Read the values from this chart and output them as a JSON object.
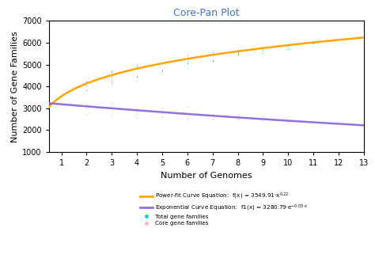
{
  "title": "Core-Pan Plot",
  "title_color": "#4472C4",
  "xlabel": "Number of Genomes",
  "ylabel": "Number of Gene Families",
  "xlim": [
    0.5,
    13
  ],
  "ylim": [
    1000,
    7000
  ],
  "xticks": [
    1,
    2,
    3,
    4,
    5,
    6,
    7,
    8,
    9,
    10,
    11,
    12,
    13
  ],
  "yticks": [
    1000,
    2000,
    3000,
    4000,
    5000,
    6000,
    7000
  ],
  "pan_color": "#FFA500",
  "core_color": "#9370DB",
  "pan_scatter_color": "#00CED1",
  "core_scatter_color": "#FFB6C1",
  "pan_a": 3549.91,
  "pan_b": 0.22,
  "core_a": 3280.79,
  "core_b": -0.03,
  "pan_points": {
    "x": [
      1,
      2,
      2,
      2,
      3,
      3,
      3,
      3,
      3,
      4,
      4,
      4,
      4,
      4,
      5,
      5,
      5,
      5,
      6,
      6,
      6,
      6,
      6,
      7,
      7,
      7,
      7,
      8,
      8,
      8,
      8,
      9,
      9,
      9,
      10,
      10,
      10,
      11,
      11
    ],
    "y": [
      3570,
      3820,
      4050,
      4220,
      4450,
      4650,
      4700,
      4230,
      4150,
      4480,
      4850,
      5000,
      4900,
      4430,
      4780,
      5100,
      5080,
      4700,
      5050,
      5300,
      5420,
      5150,
      5050,
      5200,
      5450,
      5550,
      5170,
      5450,
      5680,
      5560,
      5480,
      5580,
      5800,
      5680,
      5700,
      5910,
      5870,
      5950,
      6050
    ]
  },
  "core_points": {
    "x": [
      1,
      2,
      2,
      2,
      3,
      3,
      3,
      3,
      4,
      4,
      4,
      4,
      5,
      5,
      5,
      5,
      6,
      6,
      6,
      6,
      7,
      7,
      7,
      7,
      8,
      8,
      8,
      9,
      9,
      9,
      10,
      10,
      10,
      11,
      11
    ],
    "y": [
      3170,
      2750,
      3020,
      3220,
      2700,
      2850,
      3130,
      3250,
      2600,
      2750,
      2850,
      3000,
      2600,
      2680,
      2780,
      3020,
      2480,
      2560,
      2730,
      3050,
      2480,
      2520,
      2650,
      2730,
      2470,
      2530,
      2700,
      2400,
      2520,
      2620,
      2380,
      2420,
      2580,
      2380,
      2420
    ]
  },
  "figsize": [
    4.74,
    3.31
  ],
  "dpi": 100
}
